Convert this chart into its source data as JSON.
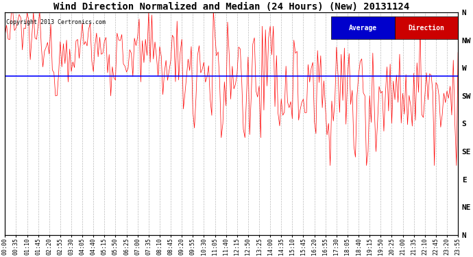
{
  "title": "Wind Direction Normalized and Median (24 Hours) (New) 20131124",
  "copyright": "Copyright 2013 Certronics.com",
  "y_labels": [
    "N",
    "NW",
    "W",
    "SW",
    "S",
    "SE",
    "E",
    "NE",
    "N"
  ],
  "y_ticks": [
    8,
    7,
    6,
    5,
    4,
    3,
    2,
    1,
    0
  ],
  "average_line_y": 5.7,
  "background_color": "#ffffff",
  "plot_bg_color": "#ffffff",
  "line_color": "#ff0000",
  "avg_line_color": "#0000ff",
  "title_fontsize": 10,
  "legend_avg_color": "#0000cc",
  "legend_dir_color": "#cc0000",
  "fig_width": 6.9,
  "fig_height": 3.75,
  "dpi": 100
}
